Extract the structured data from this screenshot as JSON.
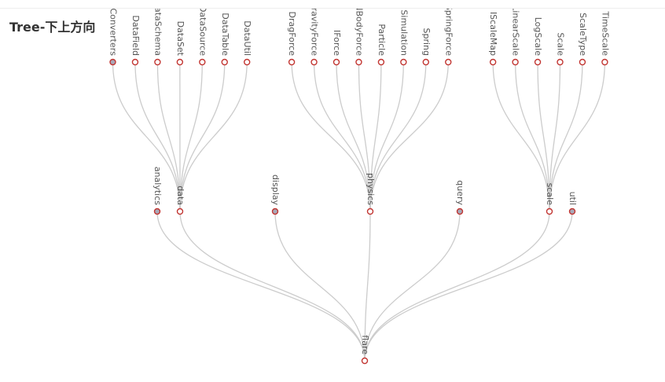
{
  "title": "Tree-下上方向",
  "colors": {
    "link": "#cccccc",
    "node_border": "#c23531",
    "node_fill_leaf": "#ffffff",
    "node_fill_collapsed": "#a8a8b8",
    "label": "#555555"
  },
  "tree": {
    "name": "flare",
    "children": [
      {
        "name": "analytics",
        "collapsed": true
      },
      {
        "name": "data",
        "children": [
          {
            "name": "Converters",
            "collapsed": true
          },
          {
            "name": "DataField"
          },
          {
            "name": "DataSchema"
          },
          {
            "name": "DataSet"
          },
          {
            "name": "DataSource"
          },
          {
            "name": "DataTable"
          },
          {
            "name": "DataUtil"
          }
        ]
      },
      {
        "name": "display",
        "collapsed": true
      },
      {
        "name": "physics",
        "children": [
          {
            "name": "DragForce"
          },
          {
            "name": "GravityForce"
          },
          {
            "name": "IForce"
          },
          {
            "name": "NBodyForce"
          },
          {
            "name": "Particle"
          },
          {
            "name": "Simulation"
          },
          {
            "name": "Spring"
          },
          {
            "name": "SpringForce"
          }
        ]
      },
      {
        "name": "query",
        "collapsed": true
      },
      {
        "name": "scale",
        "children": [
          {
            "name": "IScaleMap"
          },
          {
            "name": "LinearScale"
          },
          {
            "name": "LogScale"
          },
          {
            "name": "Scale"
          },
          {
            "name": "ScaleType"
          },
          {
            "name": "TimeScale"
          }
        ]
      },
      {
        "name": "util",
        "collapsed": true
      }
    ]
  }
}
